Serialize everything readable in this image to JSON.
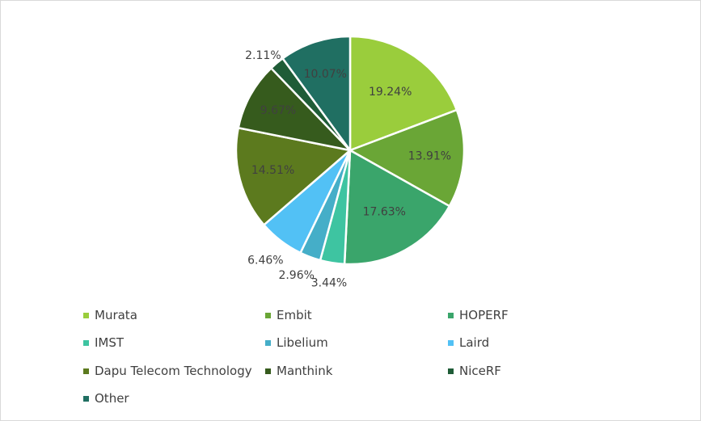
{
  "chart_data": {
    "type": "pie",
    "title": "",
    "legend_position": "bottom",
    "slices": [
      {
        "name": "Murata",
        "value": 19.24,
        "label": "19.24%",
        "color": "#9acd3c"
      },
      {
        "name": "Embit",
        "value": 13.91,
        "label": "13.91%",
        "color": "#6aa636"
      },
      {
        "name": "HOPERF",
        "value": 17.63,
        "label": "17.63%",
        "color": "#3aa56b"
      },
      {
        "name": "IMST",
        "value": 3.44,
        "label": "3.44%",
        "color": "#3ec4a1"
      },
      {
        "name": "Libelium",
        "value": 2.96,
        "label": "2.96%",
        "color": "#45aec8"
      },
      {
        "name": "Laird",
        "value": 6.46,
        "label": "6.46%",
        "color": "#52c1f5"
      },
      {
        "name": "Dapu Telecom Technology",
        "value": 14.51,
        "label": "14.51%",
        "color": "#5c7a1e"
      },
      {
        "name": "Manthink",
        "value": 9.67,
        "label": "9.67%",
        "color": "#365b1d"
      },
      {
        "name": "NiceRF",
        "value": 2.11,
        "label": "2.11%",
        "color": "#1f5c37"
      },
      {
        "name": "Other",
        "value": 10.07,
        "label": "10.07%",
        "color": "#206f62"
      }
    ]
  }
}
